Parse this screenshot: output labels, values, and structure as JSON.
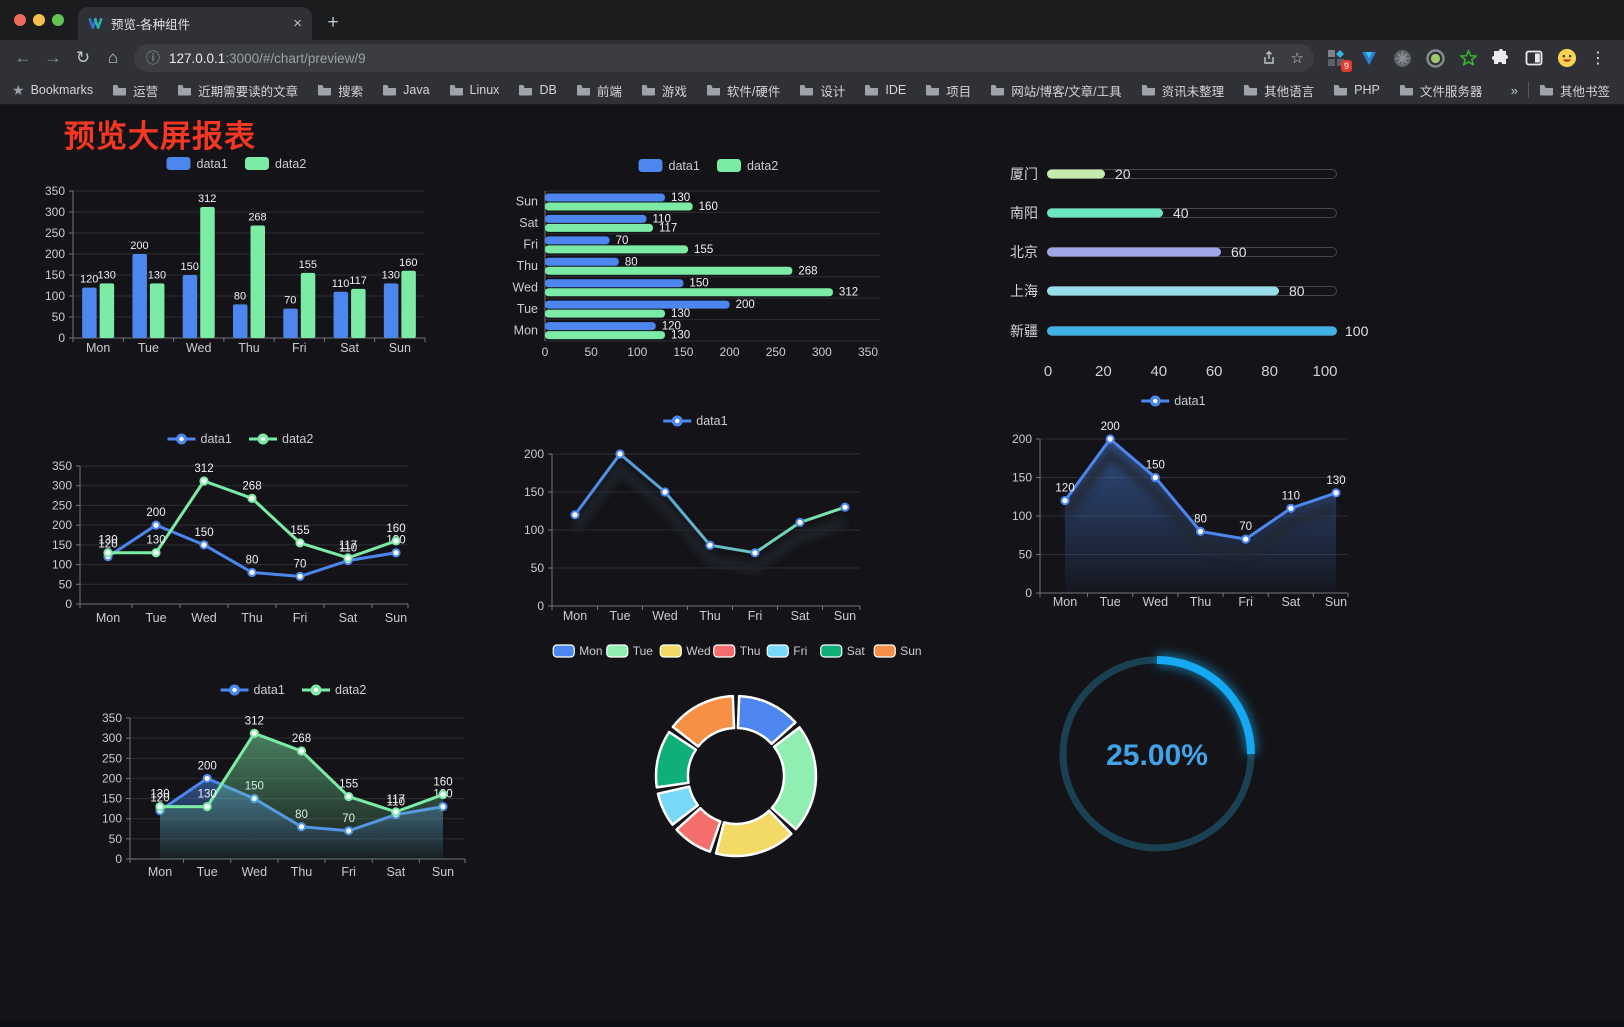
{
  "browser": {
    "tab": {
      "title": "预览-各种组件",
      "close_glyph": "×"
    },
    "new_tab_button": "+",
    "url_host": "127.0.0.1",
    "url_rest": ":3000/#/chart/preview/9",
    "extension_badge": "9",
    "bookmarks_label": "Bookmarks",
    "bookmarks": [
      "运营",
      "近期需要读的文章",
      "搜索",
      "Java",
      "Linux",
      "DB",
      "前端",
      "游戏",
      "软件/硬件",
      "设计",
      "IDE",
      "项目",
      "网站/博客/文章/工具",
      "资讯未整理",
      "其他语言",
      "PHP",
      "文件服务器"
    ],
    "bookmarks_overflow": "»",
    "other_bookmarks": "其他书签",
    "menu_glyph": "⋮"
  },
  "page": {
    "title": "预览大屏报表",
    "title_color": "#f53723"
  },
  "colors": {
    "data1": "#4C86EE",
    "data2": "#7BEBA5",
    "grid": "#2c2e33",
    "axis": "#71757d",
    "tick_text": "#c9ccd1",
    "value_text": "#f0f1f3",
    "gauge_arc": "#14A9F2",
    "gauge_track": "#1a4152",
    "gauge_text": "#41a3e8"
  },
  "chart_data": [
    {
      "id": "bar-grouped",
      "type": "bar",
      "categories": [
        "Mon",
        "Tue",
        "Wed",
        "Thu",
        "Fri",
        "Sat",
        "Sun"
      ],
      "series": [
        {
          "name": "data1",
          "color": "#4C86EE",
          "values": [
            120,
            200,
            150,
            80,
            70,
            110,
            130
          ]
        },
        {
          "name": "data2",
          "color": "#7BEBA5",
          "values": [
            130,
            130,
            312,
            268,
            155,
            117,
            160
          ]
        }
      ],
      "ylim": [
        0,
        350
      ],
      "ytick": 50,
      "legend_position": "top",
      "grid": true
    },
    {
      "id": "bar-horizontal",
      "type": "bar",
      "orientation": "horizontal",
      "categories_top_to_bottom": [
        "Sun",
        "Sat",
        "Fri",
        "Thu",
        "Wed",
        "Tue",
        "Mon"
      ],
      "series": [
        {
          "name": "data1",
          "color": "#4C86EE",
          "values_top_to_bottom": [
            130,
            110,
            70,
            80,
            150,
            200,
            120
          ]
        },
        {
          "name": "data2",
          "color": "#7BEBA5",
          "values_top_to_bottom": [
            160,
            117,
            155,
            268,
            312,
            130,
            130
          ]
        }
      ],
      "xlim": [
        0,
        350
      ],
      "xtick": 50,
      "legend_position": "top",
      "grid": true
    },
    {
      "id": "city-progress",
      "type": "bar",
      "orientation": "progress",
      "items": [
        {
          "label": "厦门",
          "value": 20,
          "color": "#c4ebad"
        },
        {
          "label": "南阳",
          "value": 40,
          "color": "#6be6c1"
        },
        {
          "label": "北京",
          "value": 60,
          "color": "#a0a7e6"
        },
        {
          "label": "上海",
          "value": 80,
          "color": "#96dee8"
        },
        {
          "label": "新疆",
          "value": 100,
          "color": "#3fb1e3"
        }
      ],
      "xlim": [
        0,
        100
      ],
      "xticks": [
        0,
        20,
        40,
        60,
        80,
        100
      ]
    },
    {
      "id": "line-dual",
      "type": "line",
      "categories": [
        "Mon",
        "Tue",
        "Wed",
        "Thu",
        "Fri",
        "Sat",
        "Sun"
      ],
      "series": [
        {
          "name": "data1",
          "color": "#4C86EE",
          "values": [
            120,
            200,
            150,
            80,
            70,
            110,
            130
          ]
        },
        {
          "name": "data2",
          "color": "#7BEBA5",
          "values": [
            130,
            130,
            312,
            268,
            155,
            117,
            160
          ]
        }
      ],
      "ylim": [
        0,
        350
      ],
      "ytick": 50,
      "legend_position": "top",
      "show_labels": true
    },
    {
      "id": "line-gradient",
      "type": "line",
      "categories": [
        "Mon",
        "Tue",
        "Wed",
        "Thu",
        "Fri",
        "Sat",
        "Sun"
      ],
      "series": [
        {
          "name": "data1",
          "gradient": [
            "#4C86EE",
            "#7BEBA5"
          ],
          "color": "#4C86EE",
          "values": [
            120,
            200,
            150,
            80,
            70,
            110,
            130
          ],
          "shadow": true
        }
      ],
      "ylim": [
        0,
        200
      ],
      "ytick": 50,
      "legend_position": "top",
      "show_labels": false
    },
    {
      "id": "area-single",
      "type": "area",
      "categories": [
        "Mon",
        "Tue",
        "Wed",
        "Thu",
        "Fri",
        "Sat",
        "Sun"
      ],
      "series": [
        {
          "name": "data1",
          "color": "#4C86EE",
          "values": [
            120,
            200,
            150,
            80,
            70,
            110,
            130
          ],
          "fill": true,
          "shadow": true
        }
      ],
      "ylim": [
        0,
        200
      ],
      "ytick": 50,
      "legend_position": "top",
      "show_labels": true
    },
    {
      "id": "area-dual",
      "type": "area",
      "categories": [
        "Mon",
        "Tue",
        "Wed",
        "Thu",
        "Fri",
        "Sat",
        "Sun"
      ],
      "series": [
        {
          "name": "data1",
          "color": "#4C86EE",
          "values": [
            120,
            200,
            150,
            80,
            70,
            110,
            130
          ],
          "fill": true
        },
        {
          "name": "data2",
          "color": "#7BEBA5",
          "values": [
            130,
            130,
            312,
            268,
            155,
            117,
            160
          ],
          "fill": true
        }
      ],
      "ylim": [
        0,
        350
      ],
      "ytick": 50,
      "legend_position": "top",
      "show_labels": true
    },
    {
      "id": "donut",
      "type": "pie",
      "items": [
        {
          "label": "Mon",
          "value": 120,
          "color": "#4C86EE"
        },
        {
          "label": "Tue",
          "value": 200,
          "color": "#91EEB2"
        },
        {
          "label": "Wed",
          "value": 150,
          "color": "#F3DA66"
        },
        {
          "label": "Thu",
          "value": 80,
          "color": "#F56E6E"
        },
        {
          "label": "Fri",
          "value": 70,
          "color": "#77D9F7"
        },
        {
          "label": "Sat",
          "value": 110,
          "color": "#0FAF78"
        },
        {
          "label": "Sun",
          "value": 130,
          "color": "#F78F44"
        }
      ],
      "legend_position": "top",
      "inner_radius_ratio": 0.6
    },
    {
      "id": "ring-gauge",
      "type": "gauge",
      "value": 25,
      "label": "25.00%",
      "arc_color": "#14A9F2",
      "track_color": "#1a4152",
      "text_color": "#41a3e8"
    }
  ]
}
